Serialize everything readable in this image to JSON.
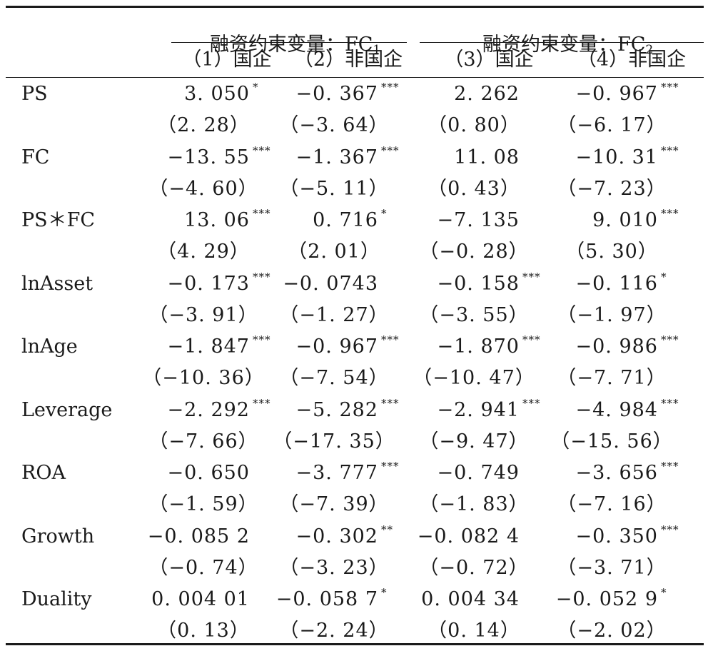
{
  "header": {
    "group1": {
      "text": "融资约束变量：FC",
      "sub": "1"
    },
    "group2": {
      "text": "融资约束变量：FC",
      "sub": "2"
    },
    "columns": [
      "（1）国企",
      "（2）非国企",
      "（3）国企",
      "（4）非国企"
    ]
  },
  "rows": [
    {
      "label": "PS",
      "coef": [
        {
          "v": "3. 050",
          "s": "*"
        },
        {
          "v": "−0. 367",
          "s": "***"
        },
        {
          "v": "2. 262",
          "s": ""
        },
        {
          "v": "−0. 967",
          "s": "***"
        }
      ],
      "t": [
        "（2. 28）",
        "（−3. 64）",
        "（0. 80）",
        "（−6. 17）"
      ]
    },
    {
      "label": "FC",
      "coef": [
        {
          "v": "−13. 55",
          "s": "***"
        },
        {
          "v": "−1. 367",
          "s": "***"
        },
        {
          "v": "11. 08",
          "s": ""
        },
        {
          "v": "−10. 31",
          "s": "***"
        }
      ],
      "t": [
        "（−4. 60）",
        "（−5. 11）",
        "（0. 43）",
        "（−7. 23）"
      ]
    },
    {
      "label": "PS＊FC",
      "coef": [
        {
          "v": "13. 06",
          "s": "***"
        },
        {
          "v": "0. 716",
          "s": "*"
        },
        {
          "v": "−7. 135",
          "s": ""
        },
        {
          "v": "9. 010",
          "s": "***"
        }
      ],
      "t": [
        "（4. 29）",
        "（2. 01）",
        "（−0. 28）",
        "（5. 30）"
      ]
    },
    {
      "label": "lnAsset",
      "coef": [
        {
          "v": "−0. 173",
          "s": "***"
        },
        {
          "v": "−0. 0743",
          "s": ""
        },
        {
          "v": "−0. 158",
          "s": "***"
        },
        {
          "v": "−0. 116",
          "s": "*"
        }
      ],
      "t": [
        "（−3. 91）",
        "（−1. 27）",
        "（−3. 55）",
        "（−1. 97）"
      ]
    },
    {
      "label": "lnAge",
      "coef": [
        {
          "v": "−1. 847",
          "s": "***"
        },
        {
          "v": "−0. 967",
          "s": "***"
        },
        {
          "v": "−1. 870",
          "s": "***"
        },
        {
          "v": "−0. 986",
          "s": "***"
        }
      ],
      "t": [
        "（−10. 36）",
        "（−7. 54）",
        "（−10. 47）",
        "（−7. 71）"
      ]
    },
    {
      "label": "Leverage",
      "coef": [
        {
          "v": "−2. 292",
          "s": "***"
        },
        {
          "v": "−5. 282",
          "s": "***"
        },
        {
          "v": "−2. 941",
          "s": "***"
        },
        {
          "v": "−4. 984",
          "s": "***"
        }
      ],
      "t": [
        "（−7. 66）",
        "（−17. 35）",
        "（−9. 47）",
        "（−15. 56）"
      ]
    },
    {
      "label": "ROA",
      "coef": [
        {
          "v": "−0. 650",
          "s": ""
        },
        {
          "v": "−3. 777",
          "s": "***"
        },
        {
          "v": "−0. 749",
          "s": ""
        },
        {
          "v": "−3. 656",
          "s": "***"
        }
      ],
      "t": [
        "（−1. 59）",
        "（−7. 39）",
        "（−1. 83）",
        "（−7. 16）"
      ]
    },
    {
      "label": "Growth",
      "coef": [
        {
          "v": "−0. 085 2",
          "s": ""
        },
        {
          "v": "−0. 302",
          "s": "**"
        },
        {
          "v": "−0. 082 4",
          "s": ""
        },
        {
          "v": "−0. 350",
          "s": "***"
        }
      ],
      "t": [
        "（−0. 74）",
        "（−3. 23）",
        "（−0. 72）",
        "（−3. 71）"
      ]
    },
    {
      "label": "Duality",
      "coef": [
        {
          "v": "0. 004 01",
          "s": ""
        },
        {
          "v": "−0. 058 7",
          "s": "*"
        },
        {
          "v": "0. 004 34",
          "s": ""
        },
        {
          "v": "−0. 052 9",
          "s": "*"
        }
      ],
      "t": [
        "（0. 13）",
        "（−2. 24）",
        "（0. 14）",
        "（−2. 02）"
      ]
    }
  ]
}
